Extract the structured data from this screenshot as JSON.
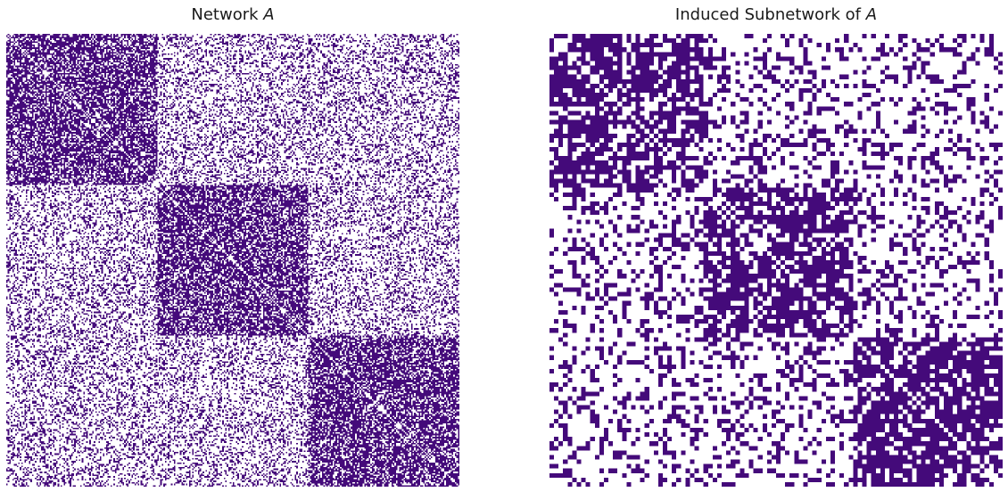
{
  "chart_data": [
    {
      "type": "heatmap",
      "title_prefix": "Network ",
      "title_var": "A",
      "n": 300,
      "blocks": [
        100,
        100,
        100
      ],
      "block_probabilities": [
        [
          0.7,
          0.3,
          0.3
        ],
        [
          0.3,
          0.7,
          0.3
        ],
        [
          0.3,
          0.3,
          0.7
        ]
      ],
      "colors": {
        "edge": "#440a7a",
        "no_edge": "#ffffff"
      },
      "axes": "off",
      "grid": false,
      "legend": "none"
    },
    {
      "type": "heatmap",
      "title_prefix": "Induced Subnetwork of ",
      "title_var": "A",
      "n": 100,
      "blocks": [
        34,
        33,
        33
      ],
      "block_probabilities": [
        [
          0.7,
          0.3,
          0.3
        ],
        [
          0.3,
          0.7,
          0.3
        ],
        [
          0.3,
          0.3,
          0.7
        ]
      ],
      "colors": {
        "edge": "#440a7a",
        "no_edge": "#ffffff"
      },
      "axes": "off",
      "grid": false,
      "legend": "none"
    }
  ]
}
